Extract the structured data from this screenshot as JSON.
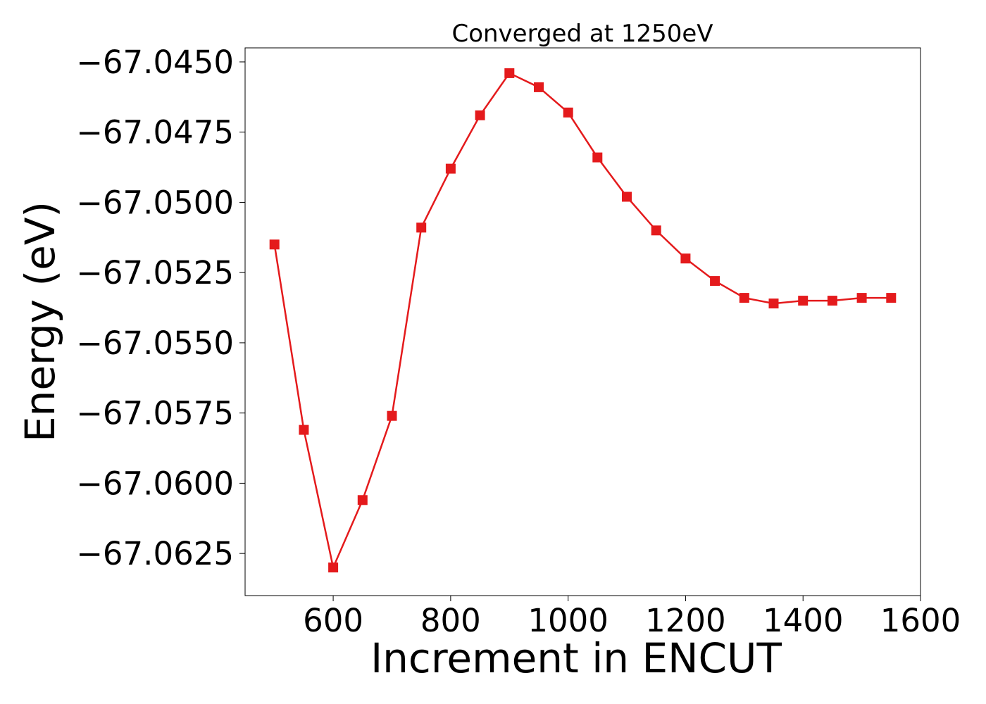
{
  "chart_data": {
    "type": "line",
    "title": "Converged at 1250eV",
    "xlabel": "Increment in ENCUT",
    "ylabel": "Energy (eV)",
    "xlim": [
      450,
      1600
    ],
    "ylim": [
      -67.064,
      -67.0445
    ],
    "x_ticks": [
      600,
      800,
      1000,
      1200,
      1400,
      1600
    ],
    "x_tick_labels": [
      "600",
      "800",
      "1000",
      "1200",
      "1400",
      "1600"
    ],
    "y_ticks": [
      -67.0625,
      -67.06,
      -67.0575,
      -67.055,
      -67.0525,
      -67.05,
      -67.0475,
      -67.045
    ],
    "y_tick_labels": [
      "−67.0625",
      "−67.0600",
      "−67.0575",
      "−67.0550",
      "−67.0525",
      "−67.0500",
      "−67.0475",
      "−67.0450"
    ],
    "grid": false,
    "series": [
      {
        "color": "#e41a1c",
        "marker": "square",
        "x": [
          500,
          550,
          600,
          650,
          700,
          750,
          800,
          850,
          900,
          950,
          1000,
          1050,
          1100,
          1150,
          1200,
          1250,
          1300,
          1350,
          1400,
          1450,
          1500,
          1550
        ],
        "y": [
          -67.0515,
          -67.0581,
          -67.063,
          -67.0606,
          -67.0576,
          -67.0509,
          -67.0488,
          -67.0469,
          -67.0454,
          -67.0459,
          -67.0468,
          -67.0484,
          -67.0498,
          -67.051,
          -67.052,
          -67.0528,
          -67.0534,
          -67.0536,
          -67.0535,
          -67.0535,
          -67.0534,
          -67.0534
        ]
      }
    ]
  }
}
